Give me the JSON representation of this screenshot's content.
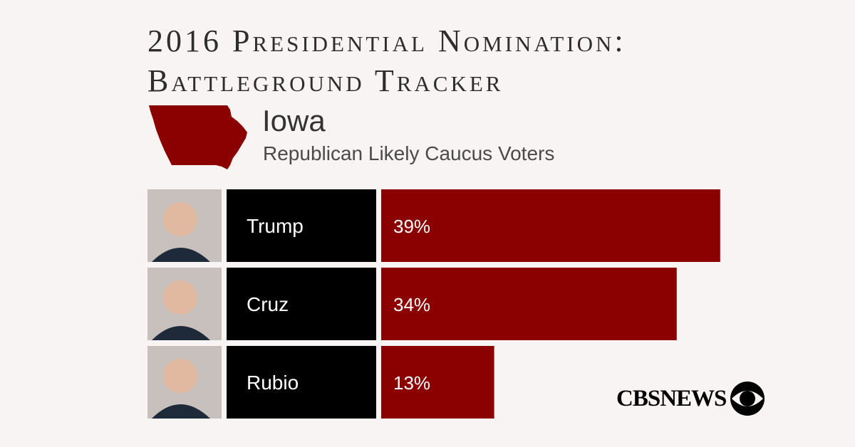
{
  "header": {
    "title_line1": "2016 Presidential Nomination:",
    "title_line2": "Battleground Tracker"
  },
  "state": {
    "name": "Iowa",
    "subtitle": "Republican Likely Caucus Voters",
    "map_icon": "iowa-map-icon",
    "map_color": "#8b0000"
  },
  "brand": {
    "logo_text": "CBSNEWS",
    "logo_icon": "cbs-eye-icon"
  },
  "chart_data": {
    "type": "bar",
    "orientation": "horizontal",
    "categories": [
      "Trump",
      "Cruz",
      "Rubio"
    ],
    "values": [
      39,
      34,
      13
    ],
    "value_labels": [
      "39%",
      "34%",
      "13%"
    ],
    "xlim": [
      0,
      50
    ],
    "grid": false,
    "bar_color": "#8b0000",
    "label_cell_color": "#000000"
  }
}
